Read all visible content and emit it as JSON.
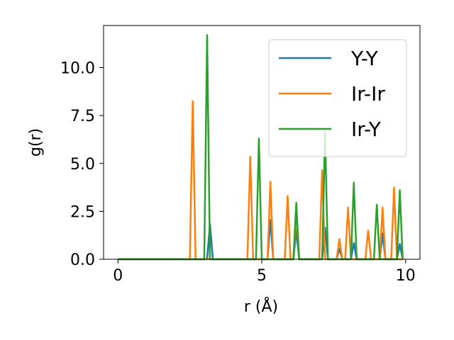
{
  "chart_data": {
    "type": "line",
    "title": "",
    "xlabel": "r (Å)",
    "ylabel": "g(r)",
    "xlim": [
      -0.5,
      10.5
    ],
    "ylim": [
      0,
      12.2
    ],
    "xticks": [
      0,
      5,
      10
    ],
    "xtick_labels": [
      "0",
      "5",
      "10"
    ],
    "yticks": [
      0,
      2.5,
      5,
      7.5,
      10
    ],
    "ytick_labels": [
      "0.0",
      "2.5",
      "5.0",
      "7.5",
      "10.0"
    ],
    "grid": false,
    "legend_position": "upper right",
    "series": [
      {
        "name": "Y-Y",
        "color": "#1f77b4",
        "x": [
          0,
          3.1,
          3.2,
          3.3,
          5.2,
          5.3,
          5.4,
          6.1,
          6.2,
          6.3,
          7.1,
          7.2,
          7.3,
          7.6,
          7.7,
          7.8,
          8.1,
          8.2,
          8.3,
          9.1,
          9.2,
          9.3,
          9.7,
          9.8,
          9.9
        ],
        "y": [
          0,
          0,
          1.85,
          0,
          0,
          2.05,
          0,
          0,
          1.5,
          0,
          0,
          1.65,
          0,
          0,
          0.55,
          0,
          0,
          0.85,
          0,
          0,
          1.35,
          0,
          0,
          0.8,
          0
        ]
      },
      {
        "name": "Ir-Ir",
        "color": "#ff7f0e",
        "x": [
          0,
          2.5,
          2.6,
          2.7,
          4.5,
          4.6,
          4.7,
          5.2,
          5.3,
          5.4,
          5.8,
          5.9,
          6.0,
          6.1,
          6.2,
          6.3,
          7.0,
          7.1,
          7.2,
          7.6,
          7.7,
          7.8,
          7.9,
          8.0,
          8.1,
          8.6,
          8.7,
          8.8,
          9.1,
          9.2,
          9.3,
          9.5,
          9.6,
          9.7,
          9.8,
          9.9
        ],
        "y": [
          0,
          0,
          8.25,
          0,
          0,
          5.35,
          0,
          0,
          4.05,
          0,
          0,
          3.3,
          0,
          0,
          2.4,
          0,
          0,
          4.65,
          0,
          0,
          1.05,
          0,
          0,
          2.7,
          0,
          0,
          1.5,
          0,
          0,
          2.7,
          0,
          0,
          3.75,
          0,
          0,
          0
        ]
      },
      {
        "name": "Ir-Y",
        "color": "#2ca02c",
        "x": [
          0,
          3.0,
          3.1,
          3.2,
          4.8,
          4.9,
          5.0,
          6.1,
          6.2,
          6.3,
          7.1,
          7.2,
          7.3,
          8.1,
          8.2,
          8.3,
          8.9,
          9.0,
          9.1,
          9.7,
          9.8,
          9.9
        ],
        "y": [
          0,
          0,
          11.7,
          0,
          0,
          6.3,
          0,
          0,
          2.95,
          0,
          0,
          6.65,
          0,
          0,
          4.0,
          0,
          0,
          2.85,
          0,
          0,
          3.6,
          0
        ]
      }
    ]
  }
}
